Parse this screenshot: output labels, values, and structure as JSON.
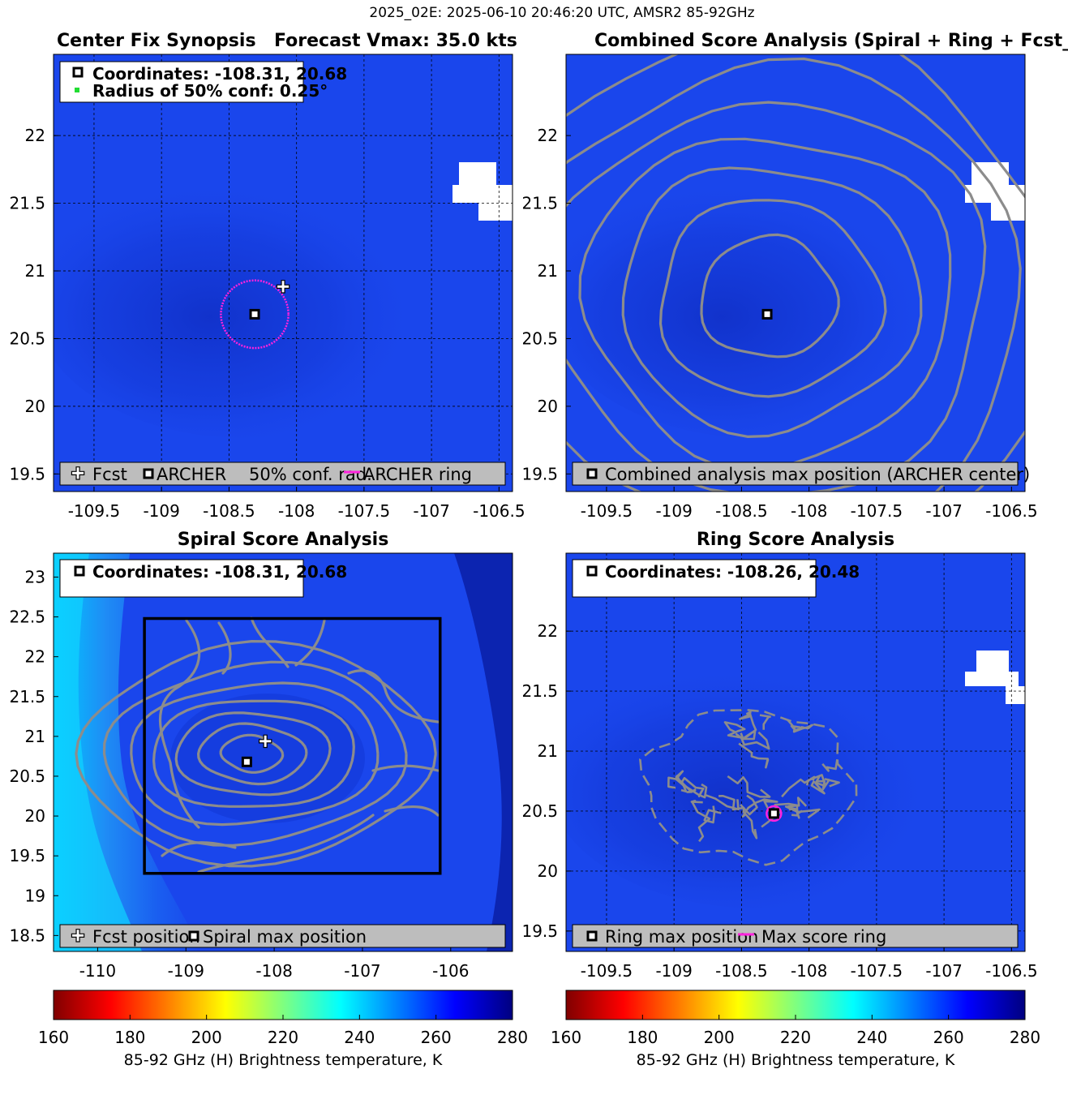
{
  "suptitle": "2025_02E: 2025-06-10 20:46:20 UTC, AMSR2 85-92GHz",
  "colors": {
    "field": "#1a46ec",
    "field_dark": "#0f2ec9",
    "contour": "#8c8c8c",
    "magenta": "#ff22dd",
    "legend_bg": "#bdbdbd",
    "box": "#000000"
  },
  "chart_data": [
    {
      "id": "synopsis",
      "type": "heatmap",
      "title_left": "Center Fix Synopsis",
      "title_right": "Forecast Vmax: 35.0 kts",
      "xlim": [
        -109.8,
        -106.4
      ],
      "ylim": [
        19.37,
        22.6
      ],
      "xticks": [
        -109.5,
        -109,
        -108.5,
        -108,
        -107.5,
        -107,
        -106.5
      ],
      "yticks": [
        19.5,
        20,
        20.5,
        21,
        21.5,
        22
      ],
      "xtick_labels": [
        "-109.5",
        "-109",
        "-108.5",
        "-108",
        "-107.5",
        "-107",
        "-106.5"
      ],
      "ytick_labels": [
        "19.5",
        "20",
        "20.5",
        "21",
        "21.5",
        "22"
      ],
      "grid": true,
      "info_lines": [
        "Coordinates: -108.31, 20.68",
        "Radius of 50% conf: 0.25°"
      ],
      "archer_center": [
        -108.31,
        20.68
      ],
      "fcst_position": [
        -108.1,
        20.88
      ],
      "conf_radius_deg": 0.25,
      "legend": [
        "Fcst",
        "ARCHER",
        "50% conf. rad.",
        "ARCHER ring"
      ]
    },
    {
      "id": "combined",
      "type": "heatmap",
      "title": "Combined Score Analysis (Spiral + Ring + Fcst_Pe",
      "xlim": [
        -109.8,
        -106.4
      ],
      "ylim": [
        19.37,
        22.6
      ],
      "xticks": [
        -109.5,
        -109,
        -108.5,
        -108,
        -107.5,
        -107,
        -106.5
      ],
      "yticks": [
        19.5,
        20,
        20.5,
        21,
        21.5,
        22
      ],
      "xtick_labels": [
        "-109.5",
        "-109",
        "-108.5",
        "-108",
        "-107.5",
        "-107",
        "-106.5"
      ],
      "ytick_labels": [
        "19.5",
        "20",
        "20.5",
        "21",
        "21.5",
        "22"
      ],
      "grid": false,
      "max_position": [
        -108.31,
        20.68
      ],
      "contour_center": [
        -108.3,
        20.8
      ],
      "contour_radii_deg": [
        0.48,
        0.78,
        1.05,
        1.3,
        1.56,
        1.82,
        2.08
      ],
      "legend": [
        "Combined analysis max position (ARCHER center)"
      ]
    },
    {
      "id": "spiral",
      "type": "heatmap",
      "title": "Spiral Score Analysis",
      "xlim": [
        -110.5,
        -105.3
      ],
      "ylim": [
        18.3,
        23.3
      ],
      "xticks": [
        -110,
        -109,
        -108,
        -107,
        -106
      ],
      "yticks": [
        18.5,
        19,
        19.5,
        20,
        20.5,
        21,
        21.5,
        22,
        22.5,
        23
      ],
      "xtick_labels": [
        "-110",
        "-109",
        "-108",
        "-107",
        "-106"
      ],
      "ytick_labels": [
        "18.5",
        "19",
        "19.5",
        "20",
        "20.5",
        "21",
        "21.5",
        "22",
        "22.5",
        "23"
      ],
      "grid": false,
      "info_lines": [
        "Coordinates: -108.31, 20.68"
      ],
      "max_position": [
        -108.31,
        20.68
      ],
      "fcst_position": [
        -108.1,
        20.88
      ],
      "search_box": {
        "x": [
          -109.47,
          -106.12
        ],
        "y": [
          19.28,
          22.48
        ]
      },
      "contour_radii_deg": [
        0.25,
        0.42,
        0.6,
        0.8,
        1.0,
        1.22,
        1.45
      ],
      "legend": [
        "Fcst position",
        "Spiral max position"
      ]
    },
    {
      "id": "ring",
      "type": "heatmap",
      "title": "Ring Score Analysis",
      "xlim": [
        -109.8,
        -106.4
      ],
      "ylim": [
        19.33,
        22.65
      ],
      "xticks": [
        -109.5,
        -109,
        -108.5,
        -108,
        -107.5,
        -107,
        -106.5
      ],
      "yticks": [
        19.5,
        20,
        20.5,
        21,
        21.5,
        22
      ],
      "xtick_labels": [
        "-109.5",
        "-109",
        "-108.5",
        "-108",
        "-107.5",
        "-107",
        "-106.5"
      ],
      "ytick_labels": [
        "19.5",
        "20",
        "20.5",
        "21",
        "21.5",
        "22"
      ],
      "grid": true,
      "info_lines": [
        "Coordinates: -108.26, 20.48"
      ],
      "max_position": [
        -108.26,
        20.48
      ],
      "legend": [
        "Ring max position",
        "Max score ring"
      ]
    }
  ],
  "colorbars": [
    {
      "id": "cb-left",
      "label": "85-92 GHz (H) Brightness temperature, K",
      "range": [
        160,
        280
      ],
      "ticks": [
        160,
        180,
        200,
        220,
        240,
        260,
        280
      ],
      "tick_labels": [
        "160",
        "180",
        "200",
        "220",
        "240",
        "260",
        "280"
      ]
    },
    {
      "id": "cb-right",
      "label": "85-92 GHz (H) Brightness temperature, K",
      "range": [
        160,
        280
      ],
      "ticks": [
        160,
        180,
        200,
        220,
        240,
        260,
        280
      ],
      "tick_labels": [
        "160",
        "180",
        "200",
        "220",
        "240",
        "260",
        "280"
      ]
    }
  ]
}
